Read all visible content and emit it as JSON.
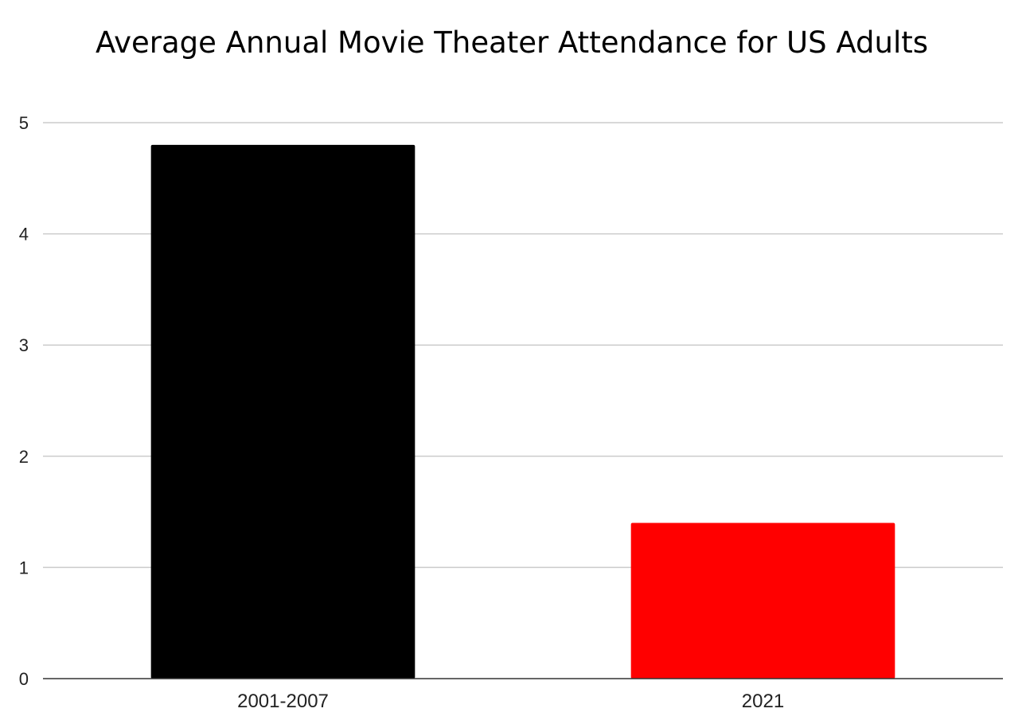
{
  "chart_data": {
    "type": "bar",
    "title": "Average Annual Movie Theater Attendance for US Adults",
    "xlabel": "",
    "ylabel": "",
    "categories": [
      "2001-2007",
      "2021"
    ],
    "values": [
      4.8,
      1.4
    ],
    "colors": [
      "#000000",
      "#ff0000"
    ],
    "ylim": [
      0,
      5
    ],
    "yticks": [
      0,
      1,
      2,
      3,
      4,
      5
    ],
    "grid": true,
    "legend": "none"
  }
}
